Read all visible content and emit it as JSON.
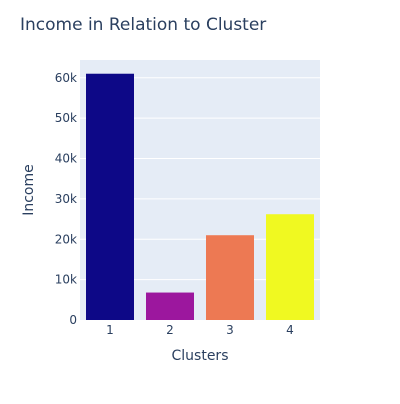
{
  "chart_data": {
    "type": "bar",
    "title": "Income in Relation to Cluster",
    "xlabel": "Clusters",
    "ylabel": "Income",
    "categories": [
      "1",
      "2",
      "3",
      "4"
    ],
    "values": [
      61000,
      6800,
      21000,
      26200
    ],
    "ylim": [
      0,
      64400
    ],
    "yticks": [
      0,
      10000,
      20000,
      30000,
      40000,
      50000,
      60000
    ],
    "ytick_labels": [
      "0",
      "10k",
      "20k",
      "30k",
      "40k",
      "50k",
      "60k"
    ],
    "grid": true,
    "legend": "none"
  },
  "colors": {
    "plot_background": "#e5ecf6",
    "grid": "#ffffff",
    "text": "#2a3f5f",
    "bars": [
      "#0d0887",
      "#9c179e",
      "#ed7953",
      "#f0f921"
    ]
  }
}
